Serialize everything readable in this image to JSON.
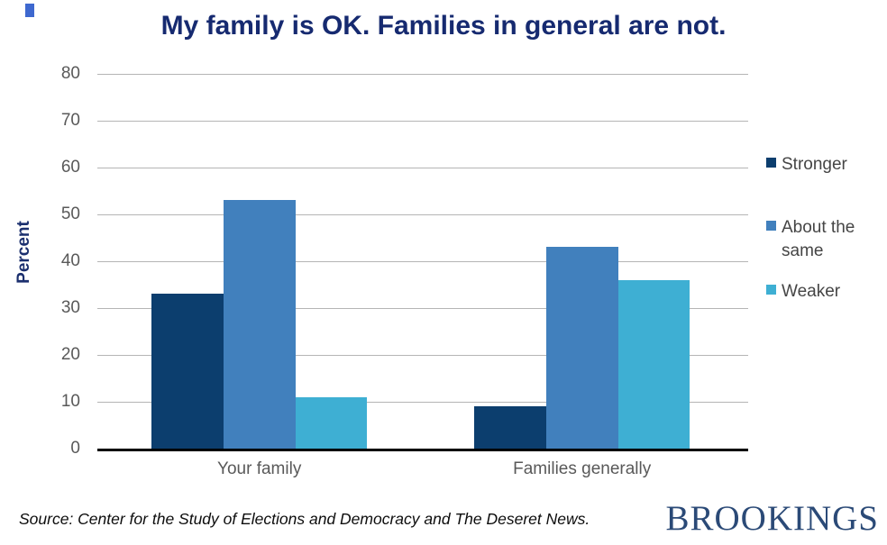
{
  "title": "My family is OK. Families in general are not.",
  "source": "Source: Center for the Study of Elections and Democracy and The Deseret News.",
  "logo": "BROOKINGS",
  "colors": {
    "title_navy": "#162a70",
    "axis_label_gray": "#595959",
    "gridline_gray": "#b5b5b5",
    "axis_line_black": "#000000",
    "legend_text": "#454545",
    "logo_navy": "#2b4a77",
    "artifact_blue": "#3e68cf"
  },
  "chart_data": {
    "type": "bar",
    "title": "My family is OK. Families in general are not.",
    "xlabel": "",
    "ylabel": "Percent",
    "categories": [
      "Your family",
      "Families generally"
    ],
    "series": [
      {
        "name": "Stronger",
        "color": "#0c3e6e",
        "values": [
          33,
          9
        ]
      },
      {
        "name": "About the same",
        "color": "#4180bd",
        "values": [
          53,
          43
        ]
      },
      {
        "name": "Weaker",
        "color": "#3eafd3",
        "values": [
          11,
          36
        ]
      }
    ],
    "ylim": [
      0,
      80
    ],
    "ytick_step": 10,
    "yticks": [
      0,
      10,
      20,
      30,
      40,
      50,
      60,
      70,
      80
    ],
    "grid": true,
    "legend_position": "right"
  }
}
